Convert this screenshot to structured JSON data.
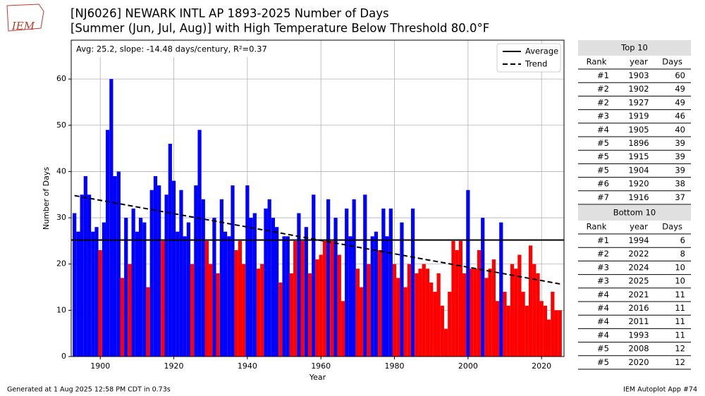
{
  "chart_data": {
    "type": "bar",
    "title": "[NJ6026] NEWARK INTL AP 1893-2025 Number of Days",
    "subtitle": "[Summer (Jun, Jul, Aug)] with High Temperature Below Threshold 80.0°F",
    "annotation": "Avg: 25.2, slope: -14.48 days/century, R²=0.37",
    "y_label": "Number of Days",
    "x_label": "Year",
    "x": [
      1893,
      1894,
      1895,
      1896,
      1897,
      1898,
      1899,
      1900,
      1901,
      1902,
      1903,
      1904,
      1905,
      1906,
      1907,
      1908,
      1909,
      1910,
      1911,
      1912,
      1913,
      1914,
      1915,
      1916,
      1917,
      1918,
      1919,
      1920,
      1921,
      1922,
      1923,
      1924,
      1925,
      1926,
      1927,
      1928,
      1929,
      1930,
      1931,
      1932,
      1933,
      1934,
      1935,
      1936,
      1937,
      1938,
      1939,
      1940,
      1941,
      1942,
      1943,
      1944,
      1945,
      1946,
      1947,
      1948,
      1949,
      1950,
      1951,
      1952,
      1953,
      1954,
      1955,
      1956,
      1957,
      1958,
      1959,
      1960,
      1961,
      1962,
      1963,
      1964,
      1965,
      1966,
      1967,
      1968,
      1969,
      1970,
      1971,
      1972,
      1973,
      1974,
      1975,
      1976,
      1977,
      1978,
      1979,
      1980,
      1981,
      1982,
      1983,
      1984,
      1985,
      1986,
      1987,
      1988,
      1989,
      1990,
      1991,
      1992,
      1993,
      1994,
      1995,
      1996,
      1997,
      1998,
      1999,
      2000,
      2001,
      2002,
      2003,
      2004,
      2005,
      2006,
      2007,
      2008,
      2009,
      2010,
      2011,
      2012,
      2013,
      2014,
      2015,
      2016,
      2017,
      2018,
      2019,
      2020,
      2021,
      2022,
      2023,
      2024,
      2025
    ],
    "values": [
      31,
      27,
      35,
      39,
      35,
      27,
      28,
      23,
      29,
      49,
      60,
      39,
      40,
      17,
      30,
      20,
      32,
      27,
      30,
      29,
      15,
      36,
      39,
      37,
      25,
      35,
      46,
      38,
      27,
      36,
      26,
      29,
      20,
      37,
      49,
      34,
      25,
      20,
      30,
      18,
      34,
      27,
      26,
      37,
      23,
      25,
      20,
      37,
      30,
      31,
      19,
      20,
      32,
      34,
      30,
      28,
      16,
      26,
      26,
      18,
      25,
      31,
      25,
      28,
      18,
      35,
      21,
      22,
      25,
      34,
      25,
      30,
      22,
      12,
      32,
      26,
      34,
      19,
      15,
      35,
      20,
      26,
      27,
      23,
      32,
      26,
      32,
      20,
      17,
      29,
      15,
      20,
      32,
      18,
      19,
      20,
      19,
      16,
      14,
      18,
      11,
      6,
      14,
      25,
      23,
      25,
      18,
      36,
      19,
      19,
      23,
      30,
      17,
      19,
      21,
      12,
      29,
      14,
      11,
      20,
      19,
      22,
      14,
      11,
      24,
      20,
      18,
      12,
      11,
      8,
      14,
      10,
      10
    ],
    "above_color": "#0000ff",
    "below_color": "#ff0000",
    "average": {
      "name": "Average",
      "value": 25.2,
      "color": "#000000"
    },
    "trend": {
      "name": "Trend",
      "x": [
        1893,
        2025
      ],
      "values": [
        34.8,
        15.7
      ],
      "color": "#000000"
    },
    "xlim": [
      1892.1,
      2026.1
    ],
    "ylim": [
      0,
      68.4
    ],
    "xticks": [
      1900,
      1920,
      1940,
      1960,
      1980,
      2000,
      2020
    ],
    "yticks": [
      0,
      10,
      20,
      30,
      40,
      50,
      60
    ],
    "grid": true,
    "legend": "upper right"
  },
  "tables": [
    {
      "title": "Top 10",
      "columns": [
        "Rank",
        "year",
        "Days"
      ],
      "rows": [
        [
          "#1",
          "1903",
          "60"
        ],
        [
          "#2",
          "1902",
          "49"
        ],
        [
          "#2",
          "1927",
          "49"
        ],
        [
          "#3",
          "1919",
          "46"
        ],
        [
          "#4",
          "1905",
          "40"
        ],
        [
          "#5",
          "1896",
          "39"
        ],
        [
          "#5",
          "1915",
          "39"
        ],
        [
          "#5",
          "1904",
          "39"
        ],
        [
          "#6",
          "1920",
          "38"
        ],
        [
          "#7",
          "1916",
          "37"
        ]
      ]
    },
    {
      "title": "Bottom 10",
      "columns": [
        "Rank",
        "year",
        "Days"
      ],
      "rows": [
        [
          "#1",
          "1994",
          "6"
        ],
        [
          "#2",
          "2022",
          "8"
        ],
        [
          "#3",
          "2024",
          "10"
        ],
        [
          "#3",
          "2025",
          "10"
        ],
        [
          "#4",
          "2021",
          "11"
        ],
        [
          "#4",
          "2016",
          "11"
        ],
        [
          "#4",
          "2011",
          "11"
        ],
        [
          "#4",
          "1993",
          "11"
        ],
        [
          "#5",
          "2008",
          "12"
        ],
        [
          "#5",
          "2020",
          "12"
        ]
      ]
    }
  ],
  "logo": "IEM",
  "footer_left": "Generated at 1 Aug 2025 12:58 PM CDT in 0.73s",
  "footer_right": "IEM Autoplot App #74"
}
